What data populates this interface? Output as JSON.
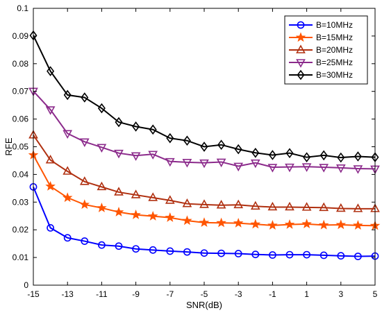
{
  "chart_data": {
    "type": "line",
    "title": "",
    "xlabel": "SNR(dB)",
    "ylabel": "RFE",
    "xlim": [
      -15,
      5
    ],
    "ylim": [
      0,
      0.1
    ],
    "x": [
      -15,
      -14,
      -13,
      -12,
      -11,
      -10,
      -9,
      -8,
      -7,
      -6,
      -5,
      -4,
      -3,
      -2,
      -1,
      0,
      1,
      2,
      3,
      4,
      5
    ],
    "xticks": [
      -15,
      -13,
      -11,
      -9,
      -7,
      -5,
      -3,
      -1,
      1,
      3,
      5
    ],
    "xtick_labels": [
      "-15",
      "-13",
      "-11",
      "-9",
      "-7",
      "-5",
      "-3",
      "-1",
      "1",
      "3",
      "5"
    ],
    "yticks": [
      0,
      0.01,
      0.02,
      0.03,
      0.04,
      0.05,
      0.06,
      0.07,
      0.08,
      0.09,
      0.1
    ],
    "ytick_labels": [
      "0",
      "0.01",
      "0.02",
      "0.03",
      "0.04",
      "0.05",
      "0.06",
      "0.07",
      "0.08",
      "0.09",
      "0.1"
    ],
    "grid": false,
    "legend_position": "top-right",
    "series": [
      {
        "name": "B=10MHz",
        "color": "#0000ff",
        "marker": "circle",
        "values": [
          0.0355,
          0.0207,
          0.0171,
          0.0159,
          0.0145,
          0.0141,
          0.0131,
          0.0127,
          0.0123,
          0.012,
          0.0116,
          0.0115,
          0.0114,
          0.0111,
          0.0109,
          0.011,
          0.011,
          0.0108,
          0.0106,
          0.0104,
          0.0105
        ]
      },
      {
        "name": "B=15MHz",
        "color": "#ff5500",
        "marker": "star",
        "values": [
          0.047,
          0.0357,
          0.0316,
          0.0291,
          0.0279,
          0.0264,
          0.0254,
          0.0249,
          0.0244,
          0.0233,
          0.0226,
          0.0225,
          0.0224,
          0.022,
          0.0216,
          0.0219,
          0.0221,
          0.0217,
          0.0218,
          0.0216,
          0.0215
        ]
      },
      {
        "name": "B=20MHz",
        "color": "#b03010",
        "marker": "triangle-up",
        "values": [
          0.0542,
          0.0452,
          0.0411,
          0.0374,
          0.0355,
          0.0336,
          0.0326,
          0.0316,
          0.0306,
          0.0294,
          0.0291,
          0.0289,
          0.029,
          0.0285,
          0.0282,
          0.0282,
          0.0281,
          0.028,
          0.0277,
          0.0276,
          0.0276
        ]
      },
      {
        "name": "B=25MHz",
        "color": "#8b2a8b",
        "marker": "triangle-down",
        "values": [
          0.0701,
          0.0634,
          0.0548,
          0.0518,
          0.0498,
          0.0477,
          0.0468,
          0.0473,
          0.0447,
          0.0444,
          0.0442,
          0.0445,
          0.043,
          0.0442,
          0.0426,
          0.0427,
          0.0428,
          0.0426,
          0.0424,
          0.0421,
          0.042
        ]
      },
      {
        "name": "B=30MHz",
        "color": "#000000",
        "marker": "diamond",
        "values": [
          0.0902,
          0.0773,
          0.0687,
          0.0678,
          0.0639,
          0.0589,
          0.0573,
          0.0562,
          0.0531,
          0.0522,
          0.05,
          0.0507,
          0.0491,
          0.0478,
          0.047,
          0.0477,
          0.0462,
          0.0469,
          0.0461,
          0.0465,
          0.0462
        ]
      }
    ]
  }
}
